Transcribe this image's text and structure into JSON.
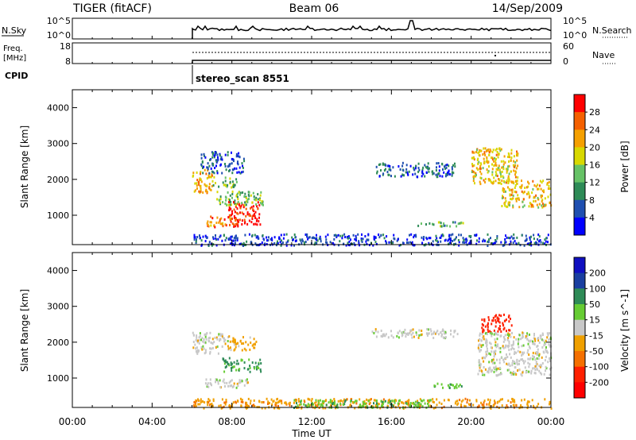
{
  "header": {
    "station": "TIGER (fitACF)",
    "beam": "Beam 06",
    "date": "14/Sep/2009"
  },
  "panels": {
    "nsky_label": "N.Sky",
    "nsky_ticks": [
      "10^5",
      "10^0"
    ],
    "nsearch_label": "N.Search",
    "nsearch_ticks": [
      "10^5",
      "10^0"
    ],
    "freq_label": "Freq.",
    "freq_unit": "[MHz]",
    "freq_ticks": [
      "18",
      "8"
    ],
    "nave_label": "Nave",
    "nave_ticks": [
      "60",
      "0"
    ],
    "cpid_label": "CPID",
    "cpid_value": "stereo_scan 8551"
  },
  "colors": {
    "power": [
      "#0000ff",
      "#1f4fb0",
      "#2e8b57",
      "#66c266",
      "#d8d800",
      "#f5a000",
      "#f56000",
      "#ff0000"
    ],
    "velocity": [
      "#1010c0",
      "#1a3fa0",
      "#2e8b57",
      "#66cc33",
      "#c8c8c8",
      "#f0a000",
      "#f57000",
      "#ff2000",
      "#ff0000"
    ]
  },
  "chart_data": [
    {
      "type": "heatmap",
      "parameter": "power",
      "xlabel": "Time UT",
      "ylabel": "Slant Range [km]",
      "xlim": [
        0,
        24
      ],
      "ylim": [
        180,
        4500
      ],
      "x_ticks": [
        "00:00",
        "04:00",
        "08:00",
        "12:00",
        "16:00",
        "20:00",
        "00:00"
      ],
      "y_ticks": [
        1000,
        2000,
        3000,
        4000
      ],
      "colorbar_label": "Power [dB]",
      "colorbar_ticks": [
        4,
        8,
        12,
        16,
        20,
        24,
        28
      ],
      "colorbar_range": [
        0,
        32
      ],
      "data_start": "06:00",
      "regions": [
        {
          "t": [
            6.0,
            7.0
          ],
          "r": [
            1650,
            2300
          ],
          "level": 22
        },
        {
          "t": [
            7.0,
            8.3
          ],
          "r": [
            1750,
            2100
          ],
          "level": 14
        },
        {
          "t": [
            7.8,
            9.4
          ],
          "r": [
            700,
            1400
          ],
          "level": 30
        },
        {
          "t": [
            7.2,
            9.6
          ],
          "r": [
            1300,
            1700
          ],
          "level": 14
        },
        {
          "t": [
            6.7,
            8.2
          ],
          "r": [
            700,
            1000
          ],
          "level": 24
        },
        {
          "t": [
            6.4,
            8.6
          ],
          "r": [
            2200,
            2800
          ],
          "level": 6
        },
        {
          "t": [
            15.2,
            19.2
          ],
          "r": [
            2100,
            2500
          ],
          "level": 7
        },
        {
          "t": [
            17.3,
            19.6
          ],
          "r": [
            720,
            850
          ],
          "level": 12
        },
        {
          "t": [
            20.0,
            22.3
          ],
          "r": [
            1900,
            2900
          ],
          "level": 20
        },
        {
          "t": [
            21.5,
            24.0
          ],
          "r": [
            1250,
            2000
          ],
          "level": 20
        },
        {
          "t": [
            6.0,
            24.0
          ],
          "r": [
            180,
            500
          ],
          "level": 5
        }
      ]
    },
    {
      "type": "heatmap",
      "parameter": "velocity",
      "xlabel": "Time UT",
      "ylabel": "Slant Range [km]",
      "xlim": [
        0,
        24
      ],
      "ylim": [
        180,
        4500
      ],
      "x_ticks": [
        "00:00",
        "04:00",
        "08:00",
        "12:00",
        "16:00",
        "20:00",
        "00:00"
      ],
      "y_ticks": [
        1000,
        2000,
        3000,
        4000
      ],
      "colorbar_label": "Velocity [m s^-1]",
      "colorbar_ticks": [
        200,
        100,
        50,
        15,
        -15,
        -50,
        -100,
        -200
      ],
      "data_start": "06:00",
      "regions": [
        {
          "t": [
            6.0,
            7.8
          ],
          "r": [
            1700,
            2300
          ],
          "v": 0
        },
        {
          "t": [
            7.5,
            9.5
          ],
          "r": [
            1200,
            1600
          ],
          "v": 60
        },
        {
          "t": [
            6.6,
            8.8
          ],
          "r": [
            750,
            1000
          ],
          "v": 0
        },
        {
          "t": [
            7.8,
            9.2
          ],
          "r": [
            1800,
            2200
          ],
          "v": -30
        },
        {
          "t": [
            15.0,
            19.3
          ],
          "r": [
            2150,
            2400
          ],
          "v": 0
        },
        {
          "t": [
            17.5,
            19.5
          ],
          "r": [
            750,
            880
          ],
          "v": 40
        },
        {
          "t": [
            20.5,
            22.0
          ],
          "r": [
            2300,
            2800
          ],
          "v": -150
        },
        {
          "t": [
            20.3,
            24.0
          ],
          "r": [
            1100,
            2300
          ],
          "v": 0
        },
        {
          "t": [
            6.0,
            24.0
          ],
          "r": [
            180,
            450
          ],
          "v": -40
        },
        {
          "t": [
            11.0,
            18.0
          ],
          "r": [
            200,
            420
          ],
          "v": 40
        }
      ]
    }
  ]
}
